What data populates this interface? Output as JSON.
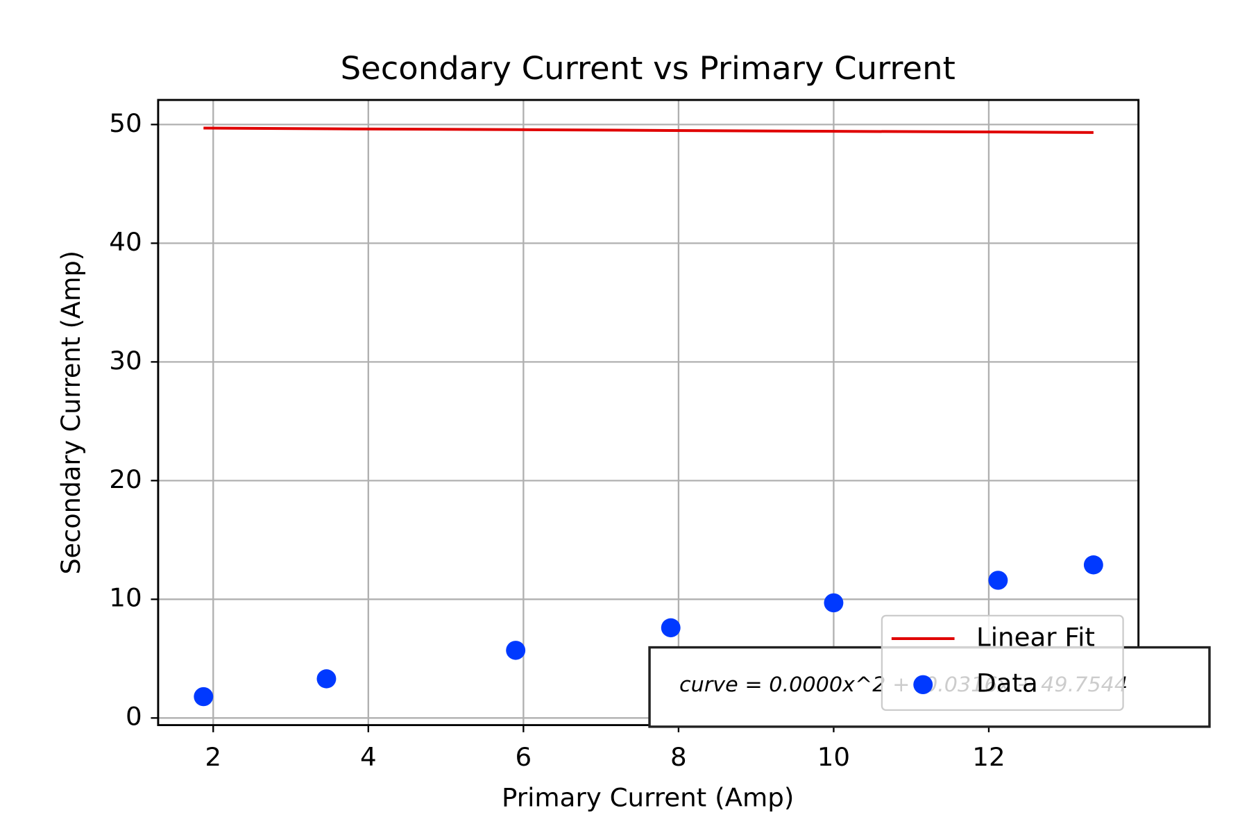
{
  "chart_data": {
    "type": "scatter",
    "title": "Secondary Current vs Primary Current",
    "x_label": "Primary Current (Amp)",
    "y_label": "Secondary Current (Amp)",
    "x": [
      1.875,
      3.46,
      5.9,
      7.9,
      10.0,
      12.12,
      13.35
    ],
    "series": [
      {
        "name": "Linear Fit",
        "type": "line",
        "color": "#e00000",
        "values": [
          49.7,
          49.64,
          49.57,
          49.5,
          49.43,
          49.37,
          49.33
        ]
      },
      {
        "name": "Data",
        "type": "scatter",
        "color": "#0039ff",
        "values": [
          1.8,
          3.3,
          5.7,
          7.6,
          9.7,
          11.6,
          12.9
        ]
      }
    ],
    "annotation": "curve = 0.0000x^2 + -0.0316x + 49.7544",
    "xlim": [
      1.29,
      13.93
    ],
    "ylim": [
      -0.6,
      52.07
    ],
    "xticks": [
      2,
      4,
      6,
      8,
      10,
      12
    ],
    "yticks": [
      0,
      10,
      20,
      30,
      40,
      50
    ],
    "grid": true,
    "legend": "lower right"
  }
}
